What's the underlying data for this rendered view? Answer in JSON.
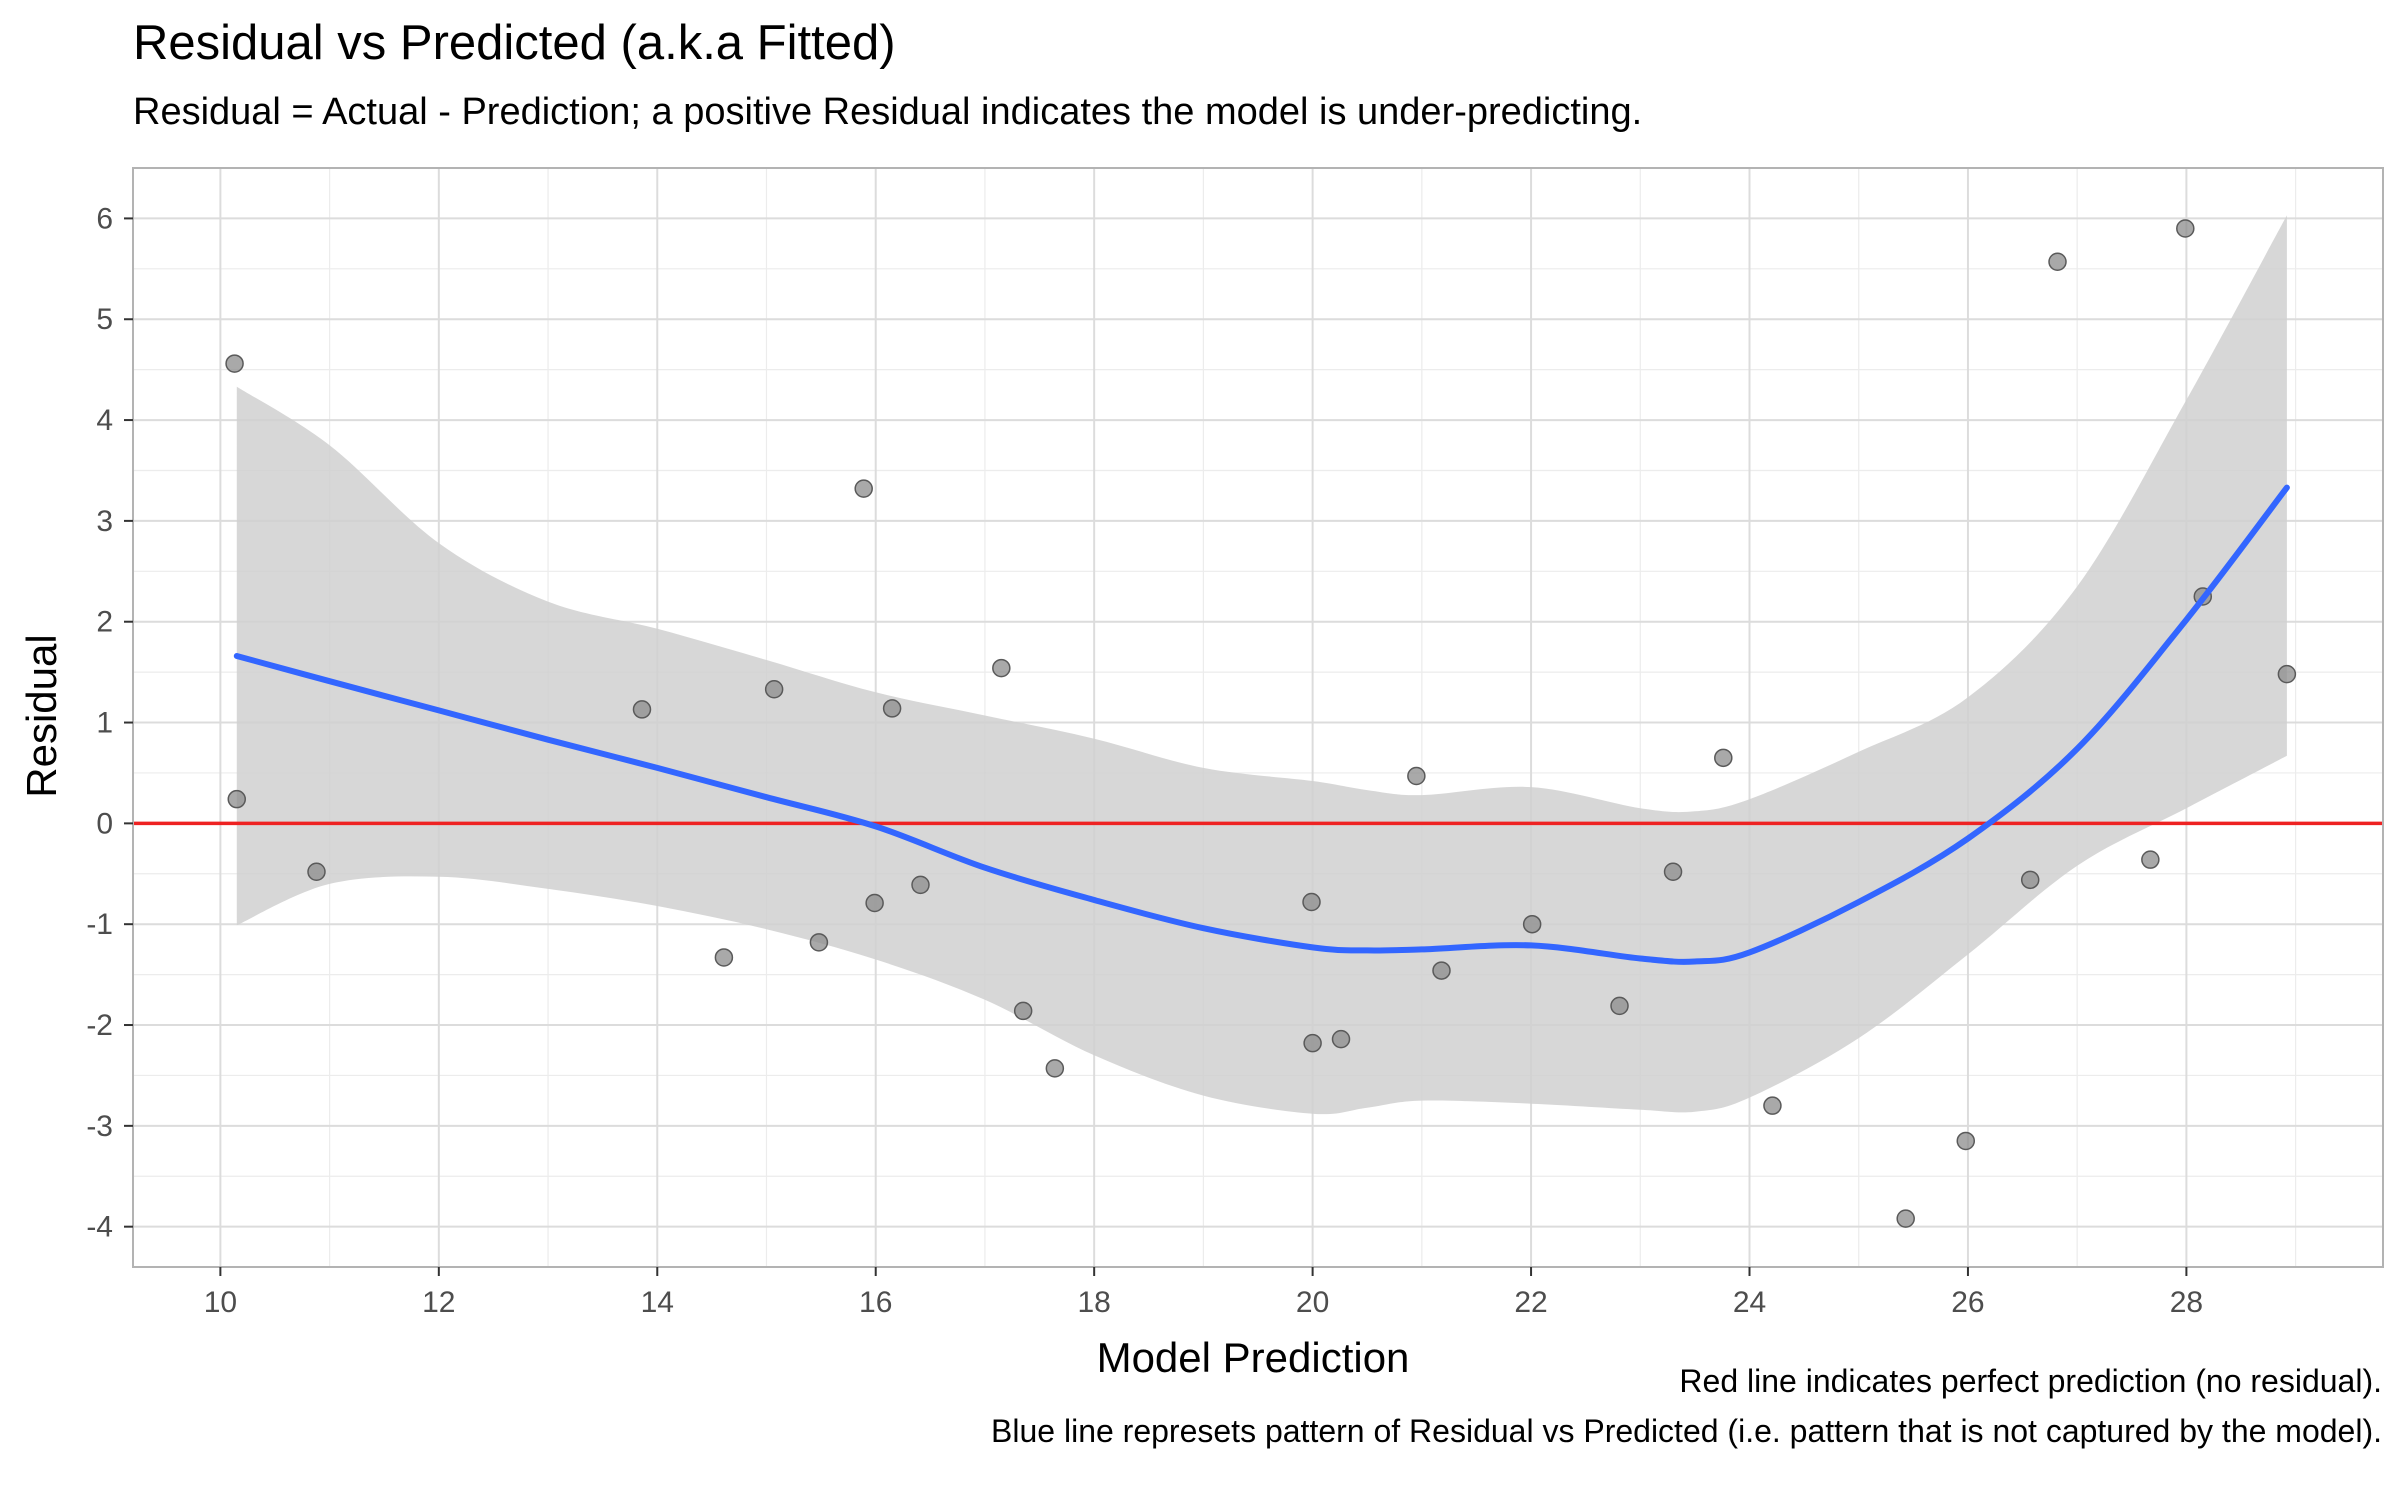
{
  "title": "Residual vs Predicted (a.k.a Fitted)",
  "subtitle": "Residual = Actual - Prediction; a positive Residual indicates the model is under-predicting.",
  "caption": {
    "line1": "Red line indicates perfect prediction (no residual).",
    "line2": "Blue line represets pattern of Residual vs Predicted (i.e. pattern that is not captured by the model)."
  },
  "colors": {
    "points": "#8c8c8c",
    "point_stroke": "#5a5a5a",
    "smooth": "#3366ff",
    "ribbon": "#d0d0d0",
    "reference": "#ee2222",
    "grid_major": "#dcdcdc",
    "grid_minor": "#ececec",
    "panel_border": "#b3b3b3"
  },
  "chart_data": {
    "type": "scatter",
    "title": "Residual vs Predicted (a.k.a Fitted)",
    "subtitle": "Residual = Actual - Prediction; a positive Residual indicates the model is under-predicting.",
    "xlabel": "Model Prediction",
    "ylabel": "Residual",
    "xlim": [
      9.2,
      29.8
    ],
    "ylim": [
      -4.4,
      6.5
    ],
    "x_ticks": [
      "10",
      "12",
      "14",
      "16",
      "18",
      "20",
      "22",
      "24",
      "26",
      "28"
    ],
    "y_ticks": [
      "-4",
      "-3",
      "-2",
      "-1",
      "0",
      "1",
      "2",
      "3",
      "4",
      "5",
      "6"
    ],
    "grid": true,
    "legend": "none",
    "reference_line": {
      "y": 0
    },
    "points": [
      {
        "x": 10.13,
        "y": 4.56
      },
      {
        "x": 10.15,
        "y": 0.24
      },
      {
        "x": 10.88,
        "y": -0.48
      },
      {
        "x": 13.86,
        "y": 1.13
      },
      {
        "x": 14.61,
        "y": -1.33
      },
      {
        "x": 15.07,
        "y": 1.33
      },
      {
        "x": 15.48,
        "y": -1.18
      },
      {
        "x": 15.89,
        "y": 3.32
      },
      {
        "x": 15.99,
        "y": -0.79
      },
      {
        "x": 16.15,
        "y": 1.14
      },
      {
        "x": 16.41,
        "y": -0.61
      },
      {
        "x": 17.15,
        "y": 1.54
      },
      {
        "x": 17.35,
        "y": -1.86
      },
      {
        "x": 17.64,
        "y": -2.43
      },
      {
        "x": 19.99,
        "y": -0.78
      },
      {
        "x": 20.0,
        "y": -2.18
      },
      {
        "x": 20.26,
        "y": -2.14
      },
      {
        "x": 20.95,
        "y": 0.47
      },
      {
        "x": 21.18,
        "y": -1.46
      },
      {
        "x": 22.01,
        "y": -1.0
      },
      {
        "x": 22.81,
        "y": -1.81
      },
      {
        "x": 23.3,
        "y": -0.48
      },
      {
        "x": 23.76,
        "y": 0.65
      },
      {
        "x": 24.21,
        "y": -2.8
      },
      {
        "x": 25.43,
        "y": -3.92
      },
      {
        "x": 25.98,
        "y": -3.15
      },
      {
        "x": 26.57,
        "y": -0.56
      },
      {
        "x": 26.82,
        "y": 5.57
      },
      {
        "x": 27.67,
        "y": -0.36
      },
      {
        "x": 27.99,
        "y": 5.9
      },
      {
        "x": 28.15,
        "y": 2.25
      },
      {
        "x": 28.92,
        "y": 1.48
      }
    ],
    "smooth": {
      "x": [
        10.15,
        11.0,
        12.0,
        13.0,
        14.0,
        15.0,
        16.0,
        17.0,
        18.0,
        19.0,
        20.0,
        20.5,
        21.0,
        22.0,
        23.0,
        23.5,
        24.0,
        25.0,
        26.0,
        27.0,
        28.0,
        28.92
      ],
      "y": [
        1.66,
        1.41,
        1.12,
        0.83,
        0.55,
        0.26,
        -0.03,
        -0.44,
        -0.76,
        -1.04,
        -1.23,
        -1.26,
        -1.25,
        -1.21,
        -1.34,
        -1.37,
        -1.28,
        -0.78,
        -0.15,
        0.74,
        2.02,
        3.33
      ],
      "lower": [
        -1.01,
        -0.6,
        -0.53,
        -0.65,
        -0.82,
        -1.05,
        -1.35,
        -1.75,
        -2.3,
        -2.7,
        -2.88,
        -2.82,
        -2.75,
        -2.78,
        -2.84,
        -2.86,
        -2.72,
        -2.13,
        -1.3,
        -0.42,
        0.15,
        0.67
      ],
      "upper": [
        4.33,
        3.75,
        2.78,
        2.2,
        1.93,
        1.62,
        1.3,
        1.07,
        0.84,
        0.55,
        0.42,
        0.33,
        0.28,
        0.36,
        0.15,
        0.12,
        0.24,
        0.71,
        1.25,
        2.35,
        4.2,
        6.03
      ]
    }
  }
}
